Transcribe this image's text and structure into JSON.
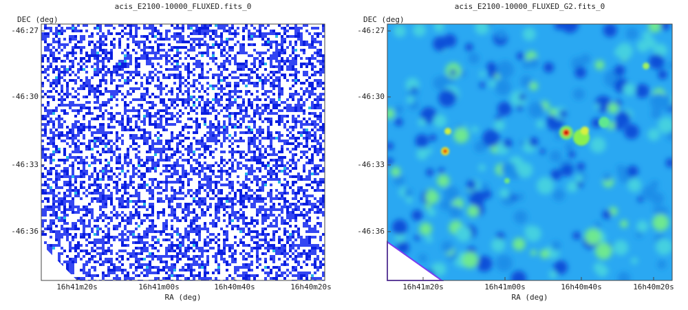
{
  "panels": [
    {
      "title": "acis_E2100-10000_FLUXED.fits_0",
      "x_label": "RA (deg)",
      "y_label": "DEC (deg)",
      "x_ticks": [
        "16h41m20s",
        "16h41m00s",
        "16h40m40s",
        "16h40m20s"
      ],
      "y_ticks": [
        "-46:27",
        "-46:30",
        "-46:33",
        "-46:36"
      ]
    },
    {
      "title": "acis_E2100-10000_FLUXED_G2.fits_0",
      "x_label": "RA (deg)",
      "y_label": "DEC (deg)",
      "x_ticks": [
        "16h41m20s",
        "16h41m00s",
        "16h40m40s",
        "16h40m20s"
      ],
      "y_ticks": [
        "-46:27",
        "-46:30",
        "-46:33",
        "-46:36"
      ]
    }
  ]
}
